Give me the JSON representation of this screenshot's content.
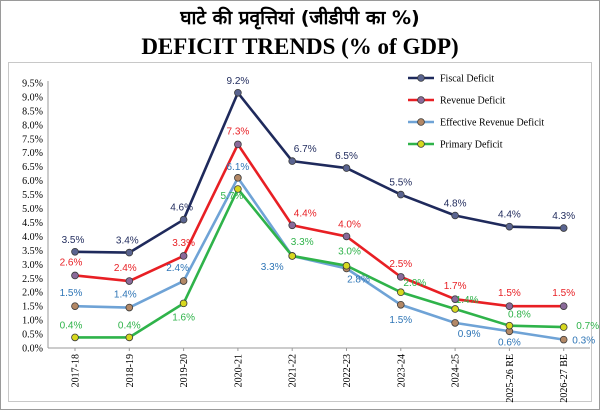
{
  "chart_data": {
    "type": "line",
    "title": "DEFICIT TRENDS (% of GDP)",
    "title_hindi": "घाटे की प्रवृत्तियां (जीडीपी का %)",
    "categories": [
      "2017-18",
      "2018-19",
      "2019-20",
      "2020-21",
      "2021-22",
      "2022-23",
      "2023-24",
      "2024-25",
      "2025-26 RE",
      "2026-27 BE"
    ],
    "ylim": [
      0,
      9.5
    ],
    "y_ticks": [
      "0.0%",
      "0.5%",
      "1.0%",
      "1.5%",
      "2.0%",
      "2.5%",
      "3.0%",
      "3.5%",
      "4.0%",
      "4.5%",
      "5.0%",
      "5.5%",
      "6.0%",
      "6.5%",
      "7.0%",
      "7.5%",
      "8.0%",
      "8.5%",
      "9.0%",
      "9.5%"
    ],
    "grid": false,
    "legend_position": "top-right",
    "series": [
      {
        "name": "Fiscal Deficit",
        "color": "#1f2a5c",
        "marker_color": "#5a6490",
        "label_color": "#1f2a5c",
        "values": [
          3.45,
          3.42,
          4.6,
          9.15,
          6.7,
          6.45,
          5.5,
          4.75,
          4.35,
          4.3
        ],
        "labels": [
          "3.5%",
          "3.4%",
          "4.6%",
          "9.2%",
          "6.7%",
          "6.5%",
          "5.5%",
          "4.8%",
          "4.4%",
          "4.3%"
        ]
      },
      {
        "name": "Revenue Deficit",
        "color": "#e81f24",
        "marker_color": "#8a6a9a",
        "label_color": "#e81f24",
        "values": [
          2.6,
          2.4,
          3.3,
          7.3,
          4.4,
          4.0,
          2.55,
          1.75,
          1.5,
          1.5
        ],
        "labels": [
          "2.6%",
          "2.4%",
          "3.3%",
          "7.3%",
          "4.4%",
          "4.0%",
          "2.5%",
          "1.7%",
          "1.5%",
          "1.5%"
        ]
      },
      {
        "name": "Effective Revenue Deficit",
        "color": "#6fa3d6",
        "marker_color": "#b38866",
        "label_color": "#2e75b6",
        "values": [
          1.5,
          1.45,
          2.4,
          6.1,
          3.3,
          2.85,
          1.55,
          0.9,
          0.6,
          0.3
        ],
        "labels": [
          "1.5%",
          "1.4%",
          "2.4%",
          "6.1%",
          "3.3%",
          "2.8%",
          "1.5%",
          "0.9%",
          "0.6%",
          "0.3%"
        ]
      },
      {
        "name": "Primary Deficit",
        "color": "#2fb34a",
        "marker_color": "#d7d81f",
        "label_color": "#2fb34a",
        "values": [
          0.38,
          0.38,
          1.6,
          5.7,
          3.3,
          2.95,
          2.0,
          1.4,
          0.8,
          0.75
        ],
        "labels": [
          "0.4%",
          "0.4%",
          "1.6%",
          "5.7%",
          "3.3%",
          "3.0%",
          "2.0%",
          "1.4%",
          "0.8%",
          "0.7%"
        ]
      }
    ]
  }
}
